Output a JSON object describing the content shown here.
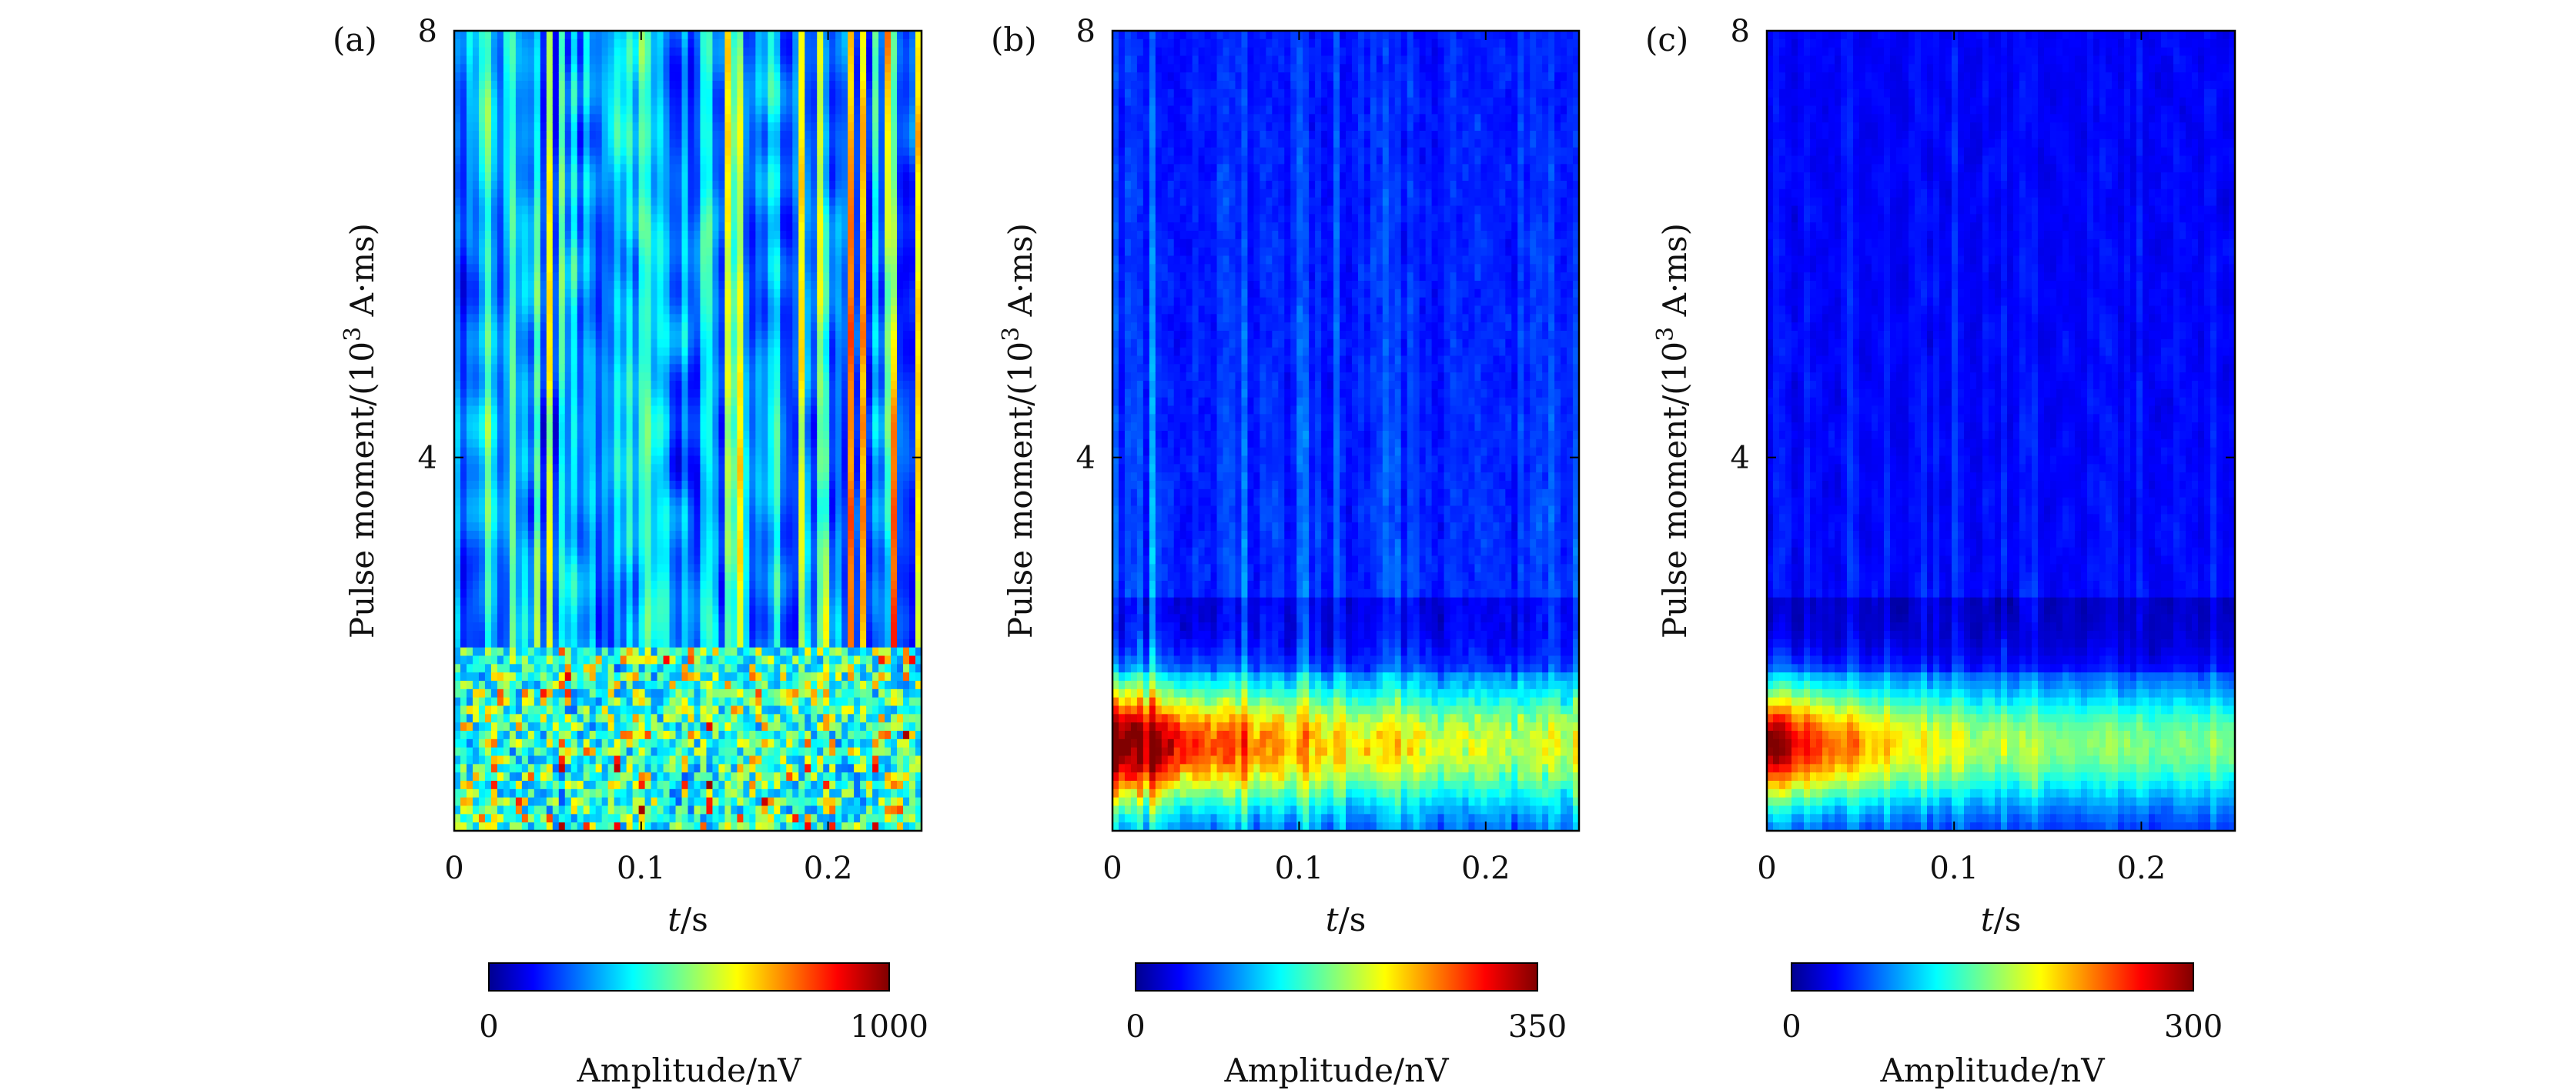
{
  "chart_data": [
    {
      "type": "heatmap",
      "panel_label": "(a)",
      "xlabel_var": "t",
      "xlabel_unit": "/s",
      "ylabel": "Pulse moment/(10",
      "ylabel_sup": "3",
      "ylabel_unit": " A·ms)",
      "xlim": [
        0,
        0.25
      ],
      "ylim": [
        0.5,
        8
      ],
      "xticks": [
        0,
        0.1,
        0.2
      ],
      "xtick_labels": [
        "0",
        "0.1",
        "0.2"
      ],
      "yticks": [
        4,
        8
      ],
      "ytick_labels": [
        "4",
        "8"
      ],
      "colorbar": {
        "min": 0,
        "max": 1000,
        "min_label": "0",
        "max_label": "1000",
        "label": "Amplitude/nV",
        "colormap": "jet"
      },
      "pattern": "vertical streaks of high amplitude across all pulse moments above ~2, strong fragmented noise below ~2"
    },
    {
      "type": "heatmap",
      "panel_label": "(b)",
      "xlabel_var": "t",
      "xlabel_unit": "/s",
      "ylabel": "Pulse moment/(10",
      "ylabel_sup": "3",
      "ylabel_unit": " A·ms)",
      "xlim": [
        0,
        0.25
      ],
      "ylim": [
        0.5,
        8
      ],
      "xticks": [
        0,
        0.1,
        0.2
      ],
      "xtick_labels": [
        "0",
        "0.1",
        "0.2"
      ],
      "yticks": [
        4,
        8
      ],
      "ytick_labels": [
        "4",
        "8"
      ],
      "colorbar": {
        "min": 0,
        "max": 350,
        "min_label": "0",
        "max_label": "350",
        "label": "Amplitude/nV",
        "colormap": "jet"
      },
      "pattern": "band of high amplitude at pulse moment ~1-2 decaying with time, weak streaks above"
    },
    {
      "type": "heatmap",
      "panel_label": "(c)",
      "xlabel_var": "t",
      "xlabel_unit": "/s",
      "ylabel": "Pulse moment/(10",
      "ylabel_sup": "3",
      "ylabel_unit": " A·ms)",
      "xlim": [
        0,
        0.25
      ],
      "ylim": [
        0.5,
        8
      ],
      "xticks": [
        0,
        0.1,
        0.2
      ],
      "xtick_labels": [
        "0",
        "0.1",
        "0.2"
      ],
      "yticks": [
        4,
        8
      ],
      "ytick_labels": [
        "4",
        "8"
      ],
      "colorbar": {
        "min": 0,
        "max": 300,
        "min_label": "0",
        "max_label": "300",
        "label": "Amplitude/nV",
        "colormap": "jet"
      },
      "pattern": "smooth band of high amplitude at pulse moment ~1-2 decaying with time, low uniform background above"
    }
  ]
}
